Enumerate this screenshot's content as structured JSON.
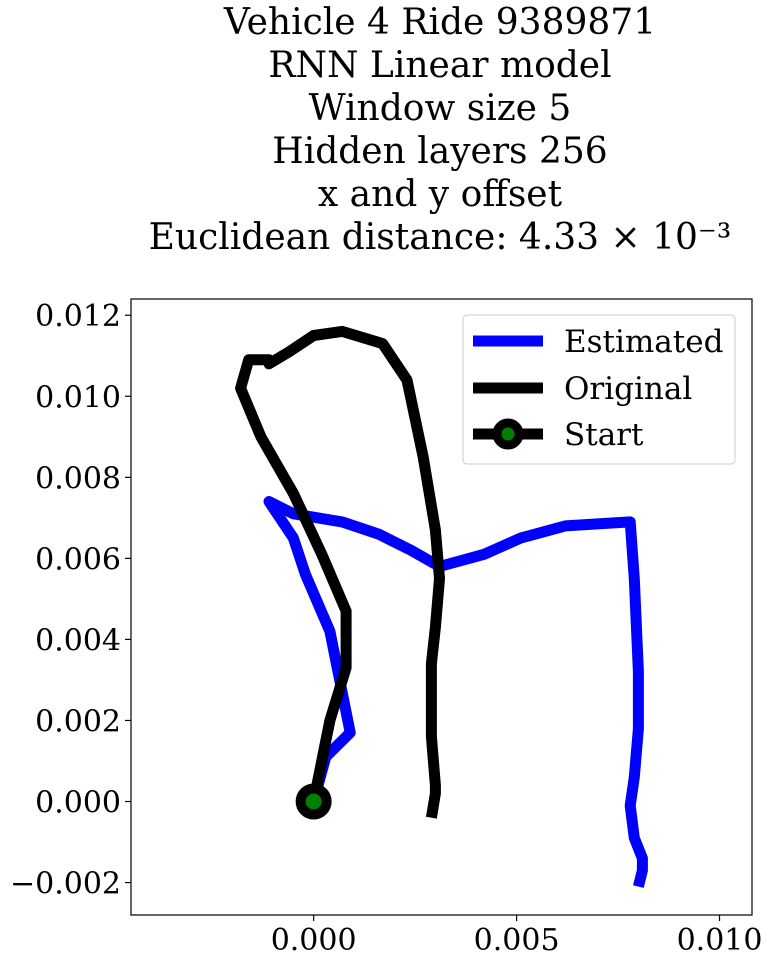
{
  "chart_data": {
    "type": "line",
    "title_lines": [
      "Vehicle 4 Ride 9389871",
      "RNN Linear model",
      "Window size 5",
      "Hidden layers 256",
      "x and y offset",
      "Euclidean distance: 4.33 × 10⁻³"
    ],
    "xlabel": "",
    "ylabel": "",
    "xlim": [
      -0.0045,
      0.0108
    ],
    "ylim": [
      -0.0028,
      0.0124
    ],
    "xticks": [
      0.0,
      0.005,
      0.01
    ],
    "xtick_labels": [
      "0.000",
      "0.005",
      "0.010"
    ],
    "yticks": [
      -0.002,
      0.0,
      0.002,
      0.004,
      0.006,
      0.008,
      0.01,
      0.012
    ],
    "ytick_labels": [
      "−0.002",
      "0.000",
      "0.002",
      "0.004",
      "0.006",
      "0.008",
      "0.010",
      "0.012"
    ],
    "grid": false,
    "legend_placement": "upper-right",
    "series": [
      {
        "name": "Estimated",
        "color": "#0000ff",
        "x": [
          0.0,
          0.0003,
          0.0009,
          0.0004,
          -0.0002,
          -0.0005,
          -0.0011,
          -0.0005,
          0.0007,
          0.0016,
          0.0024,
          0.0031,
          0.0042,
          0.0051,
          0.0062,
          0.0078,
          0.0079,
          0.008,
          0.008,
          0.0079,
          0.0078,
          0.0079,
          0.0081,
          0.0081,
          0.008
        ],
        "y": [
          0.0,
          0.0011,
          0.0017,
          0.0042,
          0.0056,
          0.0065,
          0.0074,
          0.0071,
          0.0069,
          0.0066,
          0.0062,
          0.0058,
          0.0061,
          0.0065,
          0.0068,
          0.0069,
          0.0055,
          0.0032,
          0.0018,
          0.0006,
          -0.0001,
          -0.0009,
          -0.0014,
          -0.0017,
          -0.0021
        ]
      },
      {
        "name": "Original",
        "color": "#000000",
        "x": [
          0.0,
          0.0004,
          0.0008,
          0.0008,
          0.0008,
          0.0002,
          -0.0005,
          -0.0013,
          -0.0018,
          -0.0016,
          -0.0011,
          -0.0011,
          -0.0006,
          0.0,
          0.0007,
          0.0017,
          0.0023,
          0.0027,
          0.003,
          0.0031,
          0.003,
          0.0029,
          0.0029,
          0.003,
          0.003,
          0.0029
        ],
        "y": [
          0.0,
          0.002,
          0.0033,
          0.0045,
          0.0047,
          0.0061,
          0.0076,
          0.009,
          0.0102,
          0.0109,
          0.0109,
          0.0108,
          0.0111,
          0.0115,
          0.0116,
          0.0113,
          0.0104,
          0.0085,
          0.0067,
          0.0055,
          0.0043,
          0.0034,
          0.0016,
          0.0004,
          0.0002,
          -0.0004
        ]
      }
    ],
    "start": {
      "name": "Start",
      "x": 0.0,
      "y": 0.0,
      "outer_color": "#000000",
      "inner_color": "#008000"
    },
    "legend": [
      "Estimated",
      "Original",
      "Start"
    ]
  }
}
